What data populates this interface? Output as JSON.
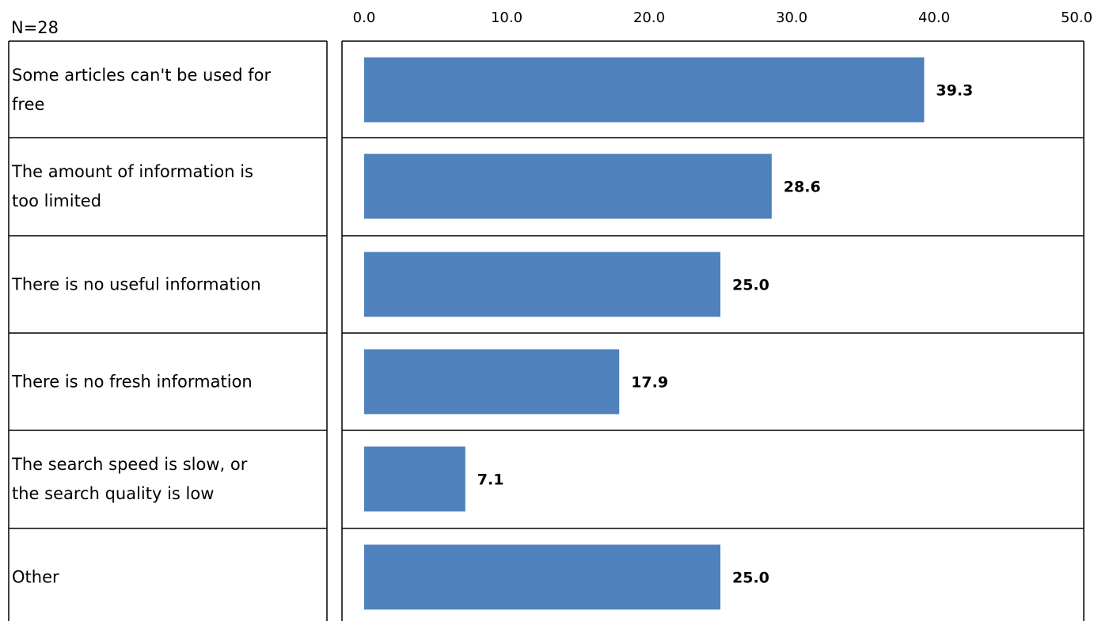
{
  "sample_label": "N=28",
  "chart_data": {
    "type": "bar",
    "orientation": "horizontal",
    "categories": [
      [
        "Some articles can't be used for",
        "free"
      ],
      [
        "The amount of information is",
        "too limited"
      ],
      [
        "There is no useful information"
      ],
      [
        "There is no fresh information"
      ],
      [
        "The search speed is slow, or",
        "the search quality is low"
      ],
      [
        "Other"
      ]
    ],
    "values": [
      39.3,
      28.6,
      25.0,
      17.9,
      7.1,
      25.0
    ],
    "data_labels": [
      "39.3",
      "28.6",
      "25.0",
      "17.9",
      "7.1",
      "25.0"
    ],
    "xlim": [
      0,
      50
    ],
    "ticks": [
      0,
      10,
      20,
      30,
      40,
      50
    ],
    "tick_labels": [
      "0.0",
      "10.0",
      "20.0",
      "30.0",
      "40.0",
      "50.0"
    ],
    "axis_position": "top",
    "grid": false,
    "bar_color": "#4F81BD",
    "line_color": "#000000"
  }
}
